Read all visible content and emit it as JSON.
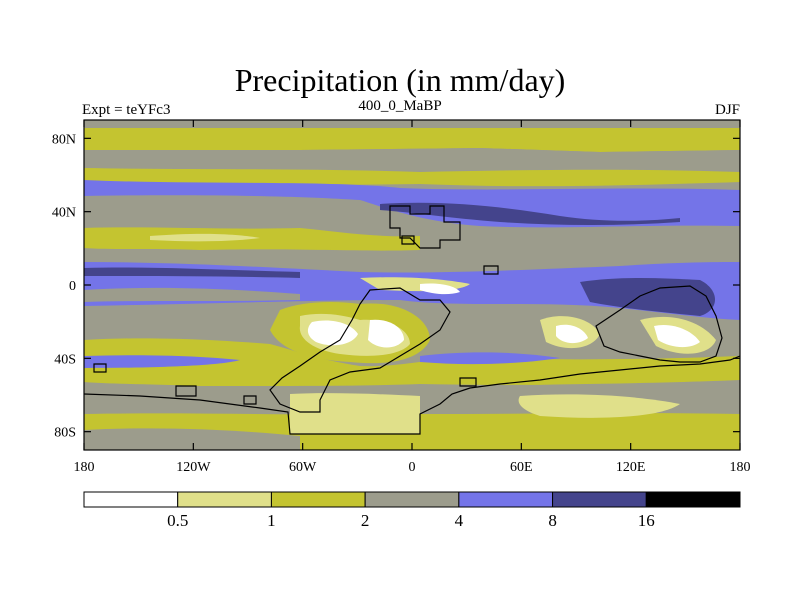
{
  "title": "Precipitation (in mm/day)",
  "left_label": "Expt = teYFc3",
  "center_label": "400_0_MaBP",
  "right_label": "DJF",
  "map": {
    "projection": "cylindrical equidistant",
    "lon_range": [
      -180,
      180
    ],
    "lat_range": [
      -90,
      90
    ],
    "lat_ticks": [
      {
        "value": 80,
        "label": "80N"
      },
      {
        "value": 40,
        "label": "40N"
      },
      {
        "value": 0,
        "label": "0"
      },
      {
        "value": -40,
        "label": "40S"
      },
      {
        "value": -80,
        "label": "80S"
      }
    ],
    "lon_ticks": [
      {
        "value": -180,
        "label": "180"
      },
      {
        "value": -120,
        "label": "120W"
      },
      {
        "value": -60,
        "label": "60W"
      },
      {
        "value": 0,
        "label": "0"
      },
      {
        "value": 60,
        "label": "60E"
      },
      {
        "value": 120,
        "label": "120E"
      },
      {
        "value": 180,
        "label": "180"
      }
    ]
  },
  "colorbar": {
    "levels": [
      "0.5",
      "1",
      "2",
      "4",
      "8",
      "16"
    ],
    "colors": [
      "#ffffff",
      "#e0e08a",
      "#c4c430",
      "#9c9c8c",
      "#7474e8",
      "#44448c",
      "#000000"
    ]
  }
}
